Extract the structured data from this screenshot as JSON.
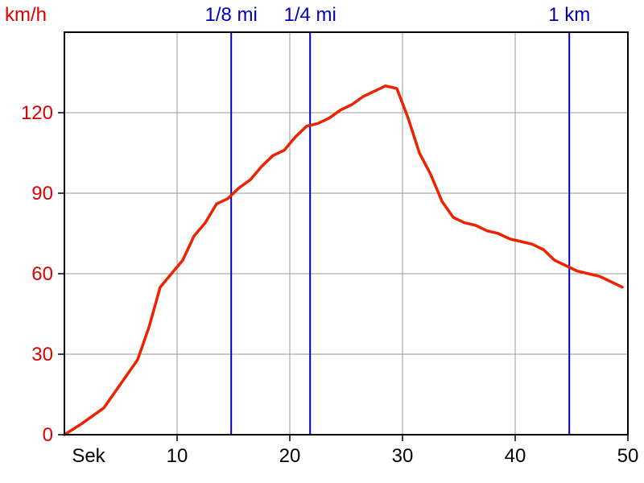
{
  "chart_data": {
    "type": "line",
    "title": "",
    "ylabel": "km/h",
    "xlabel": "Sek",
    "xlim": [
      0,
      50
    ],
    "ylim": [
      0,
      150
    ],
    "x_ticks": [
      10,
      20,
      30,
      40,
      50
    ],
    "y_ticks": [
      0,
      30,
      60,
      90,
      120
    ],
    "grid": true,
    "series": [
      {
        "color": "#ee2200",
        "points": [
          [
            0,
            0
          ],
          [
            1.5,
            4
          ],
          [
            3.5,
            10
          ],
          [
            5,
            19
          ],
          [
            6.5,
            28
          ],
          [
            7.5,
            40
          ],
          [
            8.5,
            55
          ],
          [
            10.5,
            65
          ],
          [
            11.5,
            74
          ],
          [
            12.5,
            79
          ],
          [
            13.5,
            86
          ],
          [
            14.5,
            88
          ],
          [
            15.5,
            92
          ],
          [
            16.5,
            95
          ],
          [
            17.5,
            100
          ],
          [
            18.5,
            104
          ],
          [
            19.5,
            106
          ],
          [
            20.5,
            111
          ],
          [
            21.5,
            115
          ],
          [
            22.5,
            116
          ],
          [
            23.5,
            118
          ],
          [
            24.5,
            121
          ],
          [
            25.5,
            123
          ],
          [
            26.5,
            126
          ],
          [
            27.5,
            128
          ],
          [
            28.5,
            130
          ],
          [
            29.5,
            129
          ],
          [
            30.5,
            118
          ],
          [
            31.5,
            105
          ],
          [
            32.5,
            97
          ],
          [
            33.5,
            87
          ],
          [
            34.5,
            81
          ],
          [
            35.5,
            79
          ],
          [
            36.5,
            78
          ],
          [
            37.5,
            76
          ],
          [
            38.5,
            75
          ],
          [
            39.5,
            73
          ],
          [
            40.5,
            72
          ],
          [
            41.5,
            71
          ],
          [
            42.5,
            69
          ],
          [
            43.5,
            65
          ],
          [
            44.5,
            63
          ],
          [
            45.5,
            61
          ],
          [
            46.5,
            60
          ],
          [
            47.5,
            59
          ],
          [
            48.5,
            57
          ],
          [
            49.5,
            55
          ]
        ]
      }
    ],
    "markers": [
      {
        "x": 14.8,
        "label": "1/8 mi"
      },
      {
        "x": 21.8,
        "label": "1/4 mi"
      },
      {
        "x": 44.8,
        "label": "1 km"
      }
    ],
    "colors": {
      "line": "#ee2200",
      "axis_text": "#dd0000",
      "marker": "#0000bb",
      "grid": "#999999",
      "frame": "#000000"
    }
  }
}
